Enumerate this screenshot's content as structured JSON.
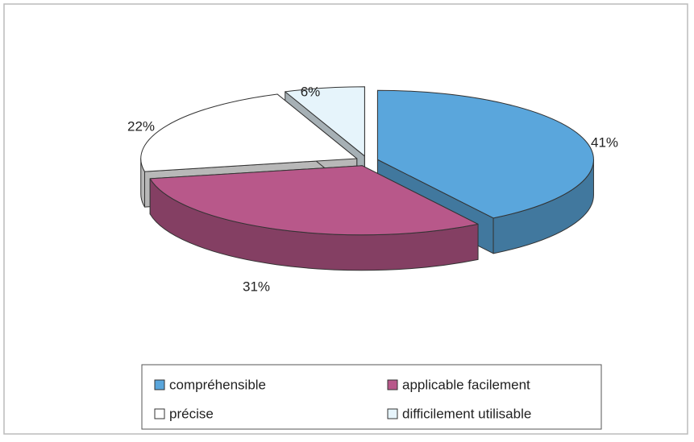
{
  "chart_data": {
    "type": "pie",
    "categories": [
      "compréhensible",
      "applicable facilement",
      "précise",
      "difficilement utilisable"
    ],
    "values": [
      41,
      31,
      22,
      6
    ],
    "value_labels": [
      "41%",
      "31%",
      "22%",
      "6%"
    ],
    "colors": [
      "#5aa6dc",
      "#b8588a",
      "#ffffff",
      "#e6f4fb"
    ],
    "legend": "bottom"
  }
}
